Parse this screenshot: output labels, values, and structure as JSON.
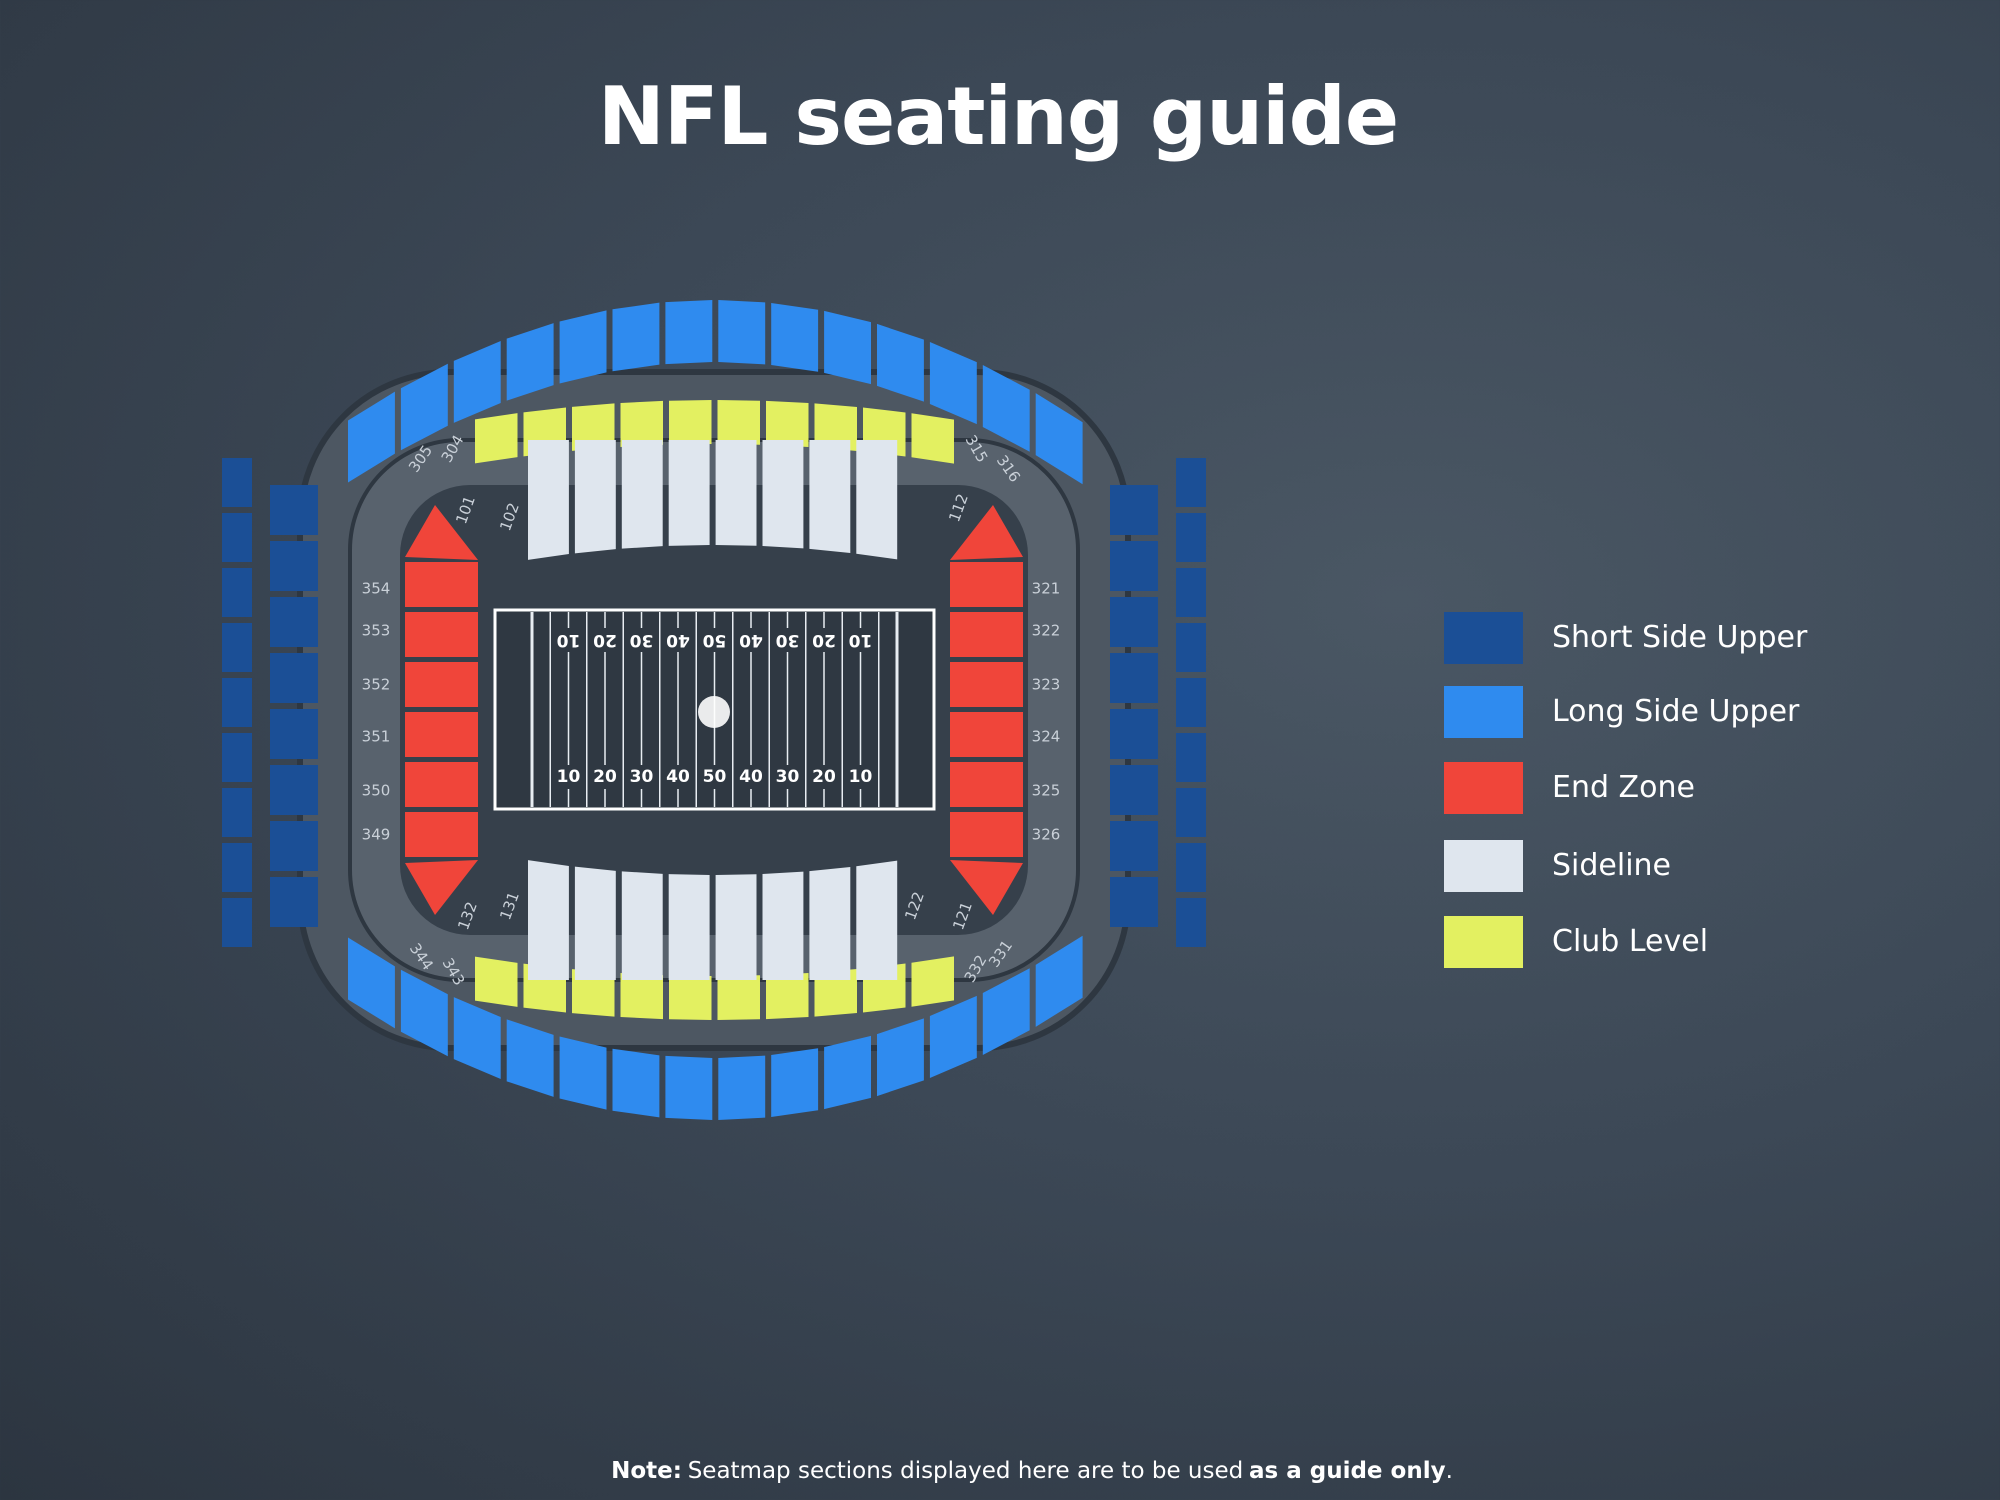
{
  "title": "NFL seating guide",
  "legend": [
    {
      "label": "Short Side Upper",
      "color": "#1b4f96"
    },
    {
      "label": "Long Side Upper",
      "color": "#2f8bef"
    },
    {
      "label": "End Zone",
      "color": "#f0453a"
    },
    {
      "label": "Sideline",
      "color": "#dfe6ee"
    },
    {
      "label": "Club Level",
      "color": "#e3f061"
    }
  ],
  "field": {
    "numbers": [
      "10",
      "20",
      "30",
      "40",
      "50",
      "40",
      "30",
      "20",
      "10"
    ]
  },
  "sections": [
    "101",
    "102",
    "112",
    "121",
    "122",
    "131",
    "132",
    "304",
    "305",
    "315",
    "316",
    "331",
    "332",
    "343",
    "344",
    "321",
    "322",
    "323",
    "324",
    "325",
    "326",
    "349",
    "350",
    "351",
    "352",
    "353",
    "354"
  ],
  "note": {
    "label": "Note:",
    "text": "Seatmap sections displayed here are to be used",
    "emphasis": "as a guide only",
    "end": "."
  }
}
